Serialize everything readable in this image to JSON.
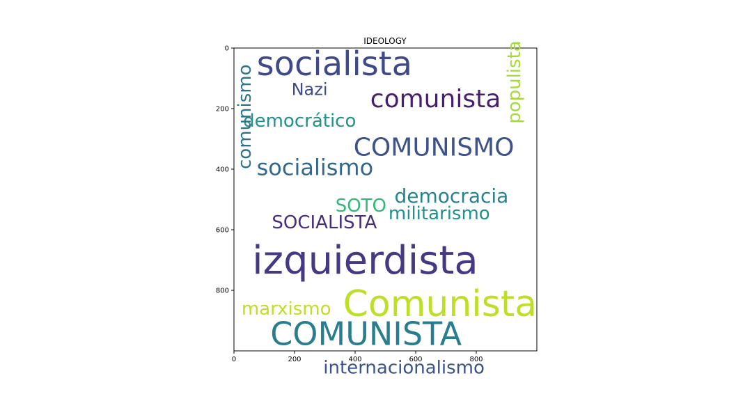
{
  "chart_data": {
    "type": "wordcloud",
    "title": "IDEOLOGY",
    "xlim": [
      0,
      1000
    ],
    "ylim": [
      1000,
      0
    ],
    "y_inverted": true,
    "xticks": [
      "0",
      "200",
      "400",
      "600",
      "800"
    ],
    "yticks": [
      "0",
      "200",
      "400",
      "600",
      "800"
    ],
    "grid": false,
    "words": [
      {
        "text": "socialista",
        "x": 75,
        "y": 90,
        "color": "#3e4a89"
      },
      {
        "text": "Nazi",
        "x": 190,
        "y": 155,
        "color": "#3e4a89"
      },
      {
        "text": "comunista",
        "x": 450,
        "y": 195,
        "color": "#481f70"
      },
      {
        "text": "democrático",
        "x": 30,
        "y": 260,
        "color": "#21918c"
      },
      {
        "text": "COMUNISMO",
        "x": 395,
        "y": 355,
        "color": "#3b528b"
      },
      {
        "text": "socialismo",
        "x": 75,
        "y": 420,
        "color": "#31688e"
      },
      {
        "text": "populista",
        "x": 945,
        "y": 250,
        "color": "#a5db36",
        "vertical": true
      },
      {
        "text": "democracia",
        "x": 530,
        "y": 510,
        "color": "#26828e"
      },
      {
        "text": "SOTO",
        "x": 335,
        "y": 540,
        "color": "#35b779"
      },
      {
        "text": "militarismo",
        "x": 510,
        "y": 565,
        "color": "#21918c"
      },
      {
        "text": "SOCIALISTA",
        "x": 125,
        "y": 595,
        "color": "#472d7b"
      },
      {
        "text": "comunismo",
        "x": 55,
        "y": 400,
        "color": "#2c728e",
        "vertical": true
      },
      {
        "text": "izquierdista",
        "x": 60,
        "y": 745,
        "color": "#443983"
      },
      {
        "text": "marxismo",
        "x": 25,
        "y": 880,
        "color": "#bddf26"
      },
      {
        "text": "Comunista",
        "x": 360,
        "y": 885,
        "color": "#bddf26"
      },
      {
        "text": "COMUNISTA",
        "x": 120,
        "y": 980,
        "color": "#287d8e"
      },
      {
        "text": "internacionalismo",
        "x": 295,
        "y": 1075,
        "color": "#3b528b"
      }
    ]
  }
}
